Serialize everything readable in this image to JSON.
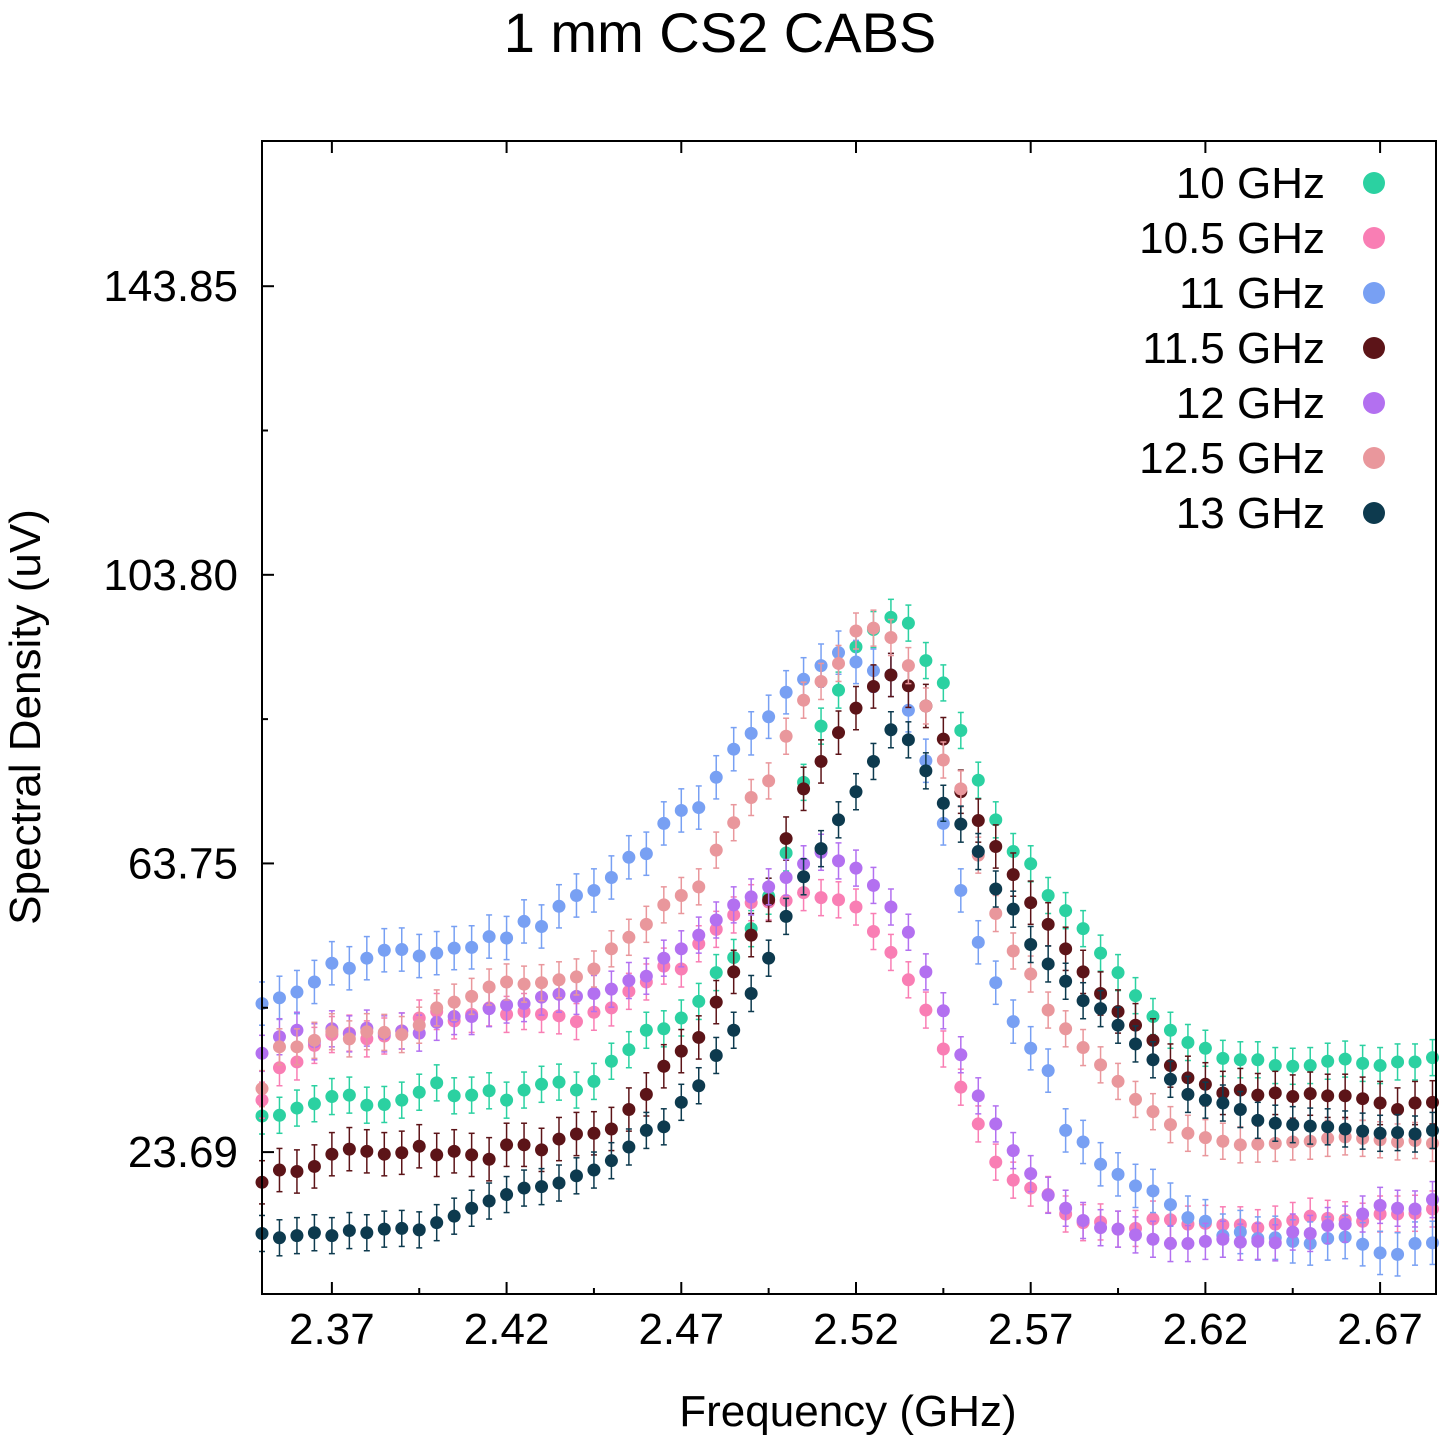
{
  "chart_data": {
    "type": "scatter",
    "title": "1 mm CS2 CABS",
    "xlabel": "Frequency (GHz)",
    "ylabel": "Spectral Density (uV)",
    "xlim": [
      2.35,
      2.686
    ],
    "ylim": [
      4.0,
      164.0
    ],
    "xticks": [
      {
        "value": 2.37,
        "label": "2.37"
      },
      {
        "value": 2.42,
        "label": "2.42"
      },
      {
        "value": 2.47,
        "label": "2.47"
      },
      {
        "value": 2.52,
        "label": "2.52"
      },
      {
        "value": 2.57,
        "label": "2.57"
      },
      {
        "value": 2.62,
        "label": "2.62"
      },
      {
        "value": 2.67,
        "label": "2.67"
      }
    ],
    "yticks": [
      {
        "value": 23.69,
        "label": "23.69"
      },
      {
        "value": 63.75,
        "label": "63.75"
      },
      {
        "value": 103.8,
        "label": "103.80"
      },
      {
        "value": 143.85,
        "label": "143.85"
      }
    ],
    "grid": false,
    "legend_position": "top-right",
    "x": [
      2.35,
      2.355,
      2.36,
      2.365,
      2.37,
      2.375,
      2.38,
      2.385,
      2.39,
      2.395,
      2.4,
      2.405,
      2.41,
      2.415,
      2.42,
      2.425,
      2.43,
      2.435,
      2.44,
      2.445,
      2.45,
      2.455,
      2.46,
      2.465,
      2.47,
      2.475,
      2.48,
      2.485,
      2.49,
      2.495,
      2.5,
      2.505,
      2.51,
      2.515,
      2.52,
      2.525,
      2.53,
      2.535,
      2.54,
      2.545,
      2.55,
      2.555,
      2.56,
      2.565,
      2.57,
      2.575,
      2.58,
      2.585,
      2.59,
      2.595,
      2.6,
      2.605,
      2.61,
      2.615,
      2.62,
      2.625,
      2.63,
      2.635,
      2.64,
      2.645,
      2.65,
      2.655,
      2.66,
      2.665,
      2.67,
      2.675,
      2.68,
      2.685
    ],
    "series": [
      {
        "name": "10 GHz",
        "color": "#2bd1a1",
        "error": 2.5,
        "values": [
          28.7,
          28.8,
          29.8,
          30.4,
          31.4,
          31.6,
          30.2,
          30.3,
          30.9,
          32.0,
          33.3,
          31.5,
          31.6,
          32.2,
          30.9,
          32.3,
          33.1,
          33.4,
          32.3,
          33.5,
          36.3,
          37.9,
          40.6,
          40.8,
          42.3,
          44.6,
          48.6,
          50.7,
          54.7,
          59.2,
          65.2,
          75.0,
          82.8,
          87.8,
          93.8,
          96.2,
          97.9,
          97.1,
          91.9,
          88.8,
          82.2,
          75.3,
          69.8,
          65.4,
          63.7,
          59.3,
          57.2,
          54.7,
          51.3,
          48.6,
          45.4,
          42.5,
          40.6,
          38.9,
          38.1,
          36.7,
          36.5,
          36.5,
          35.7,
          35.6,
          35.7,
          36.3,
          36.6,
          36.0,
          35.7,
          36.2,
          36.2,
          36.8
        ]
      },
      {
        "name": "10.5 GHz",
        "color": "#f97eb4",
        "error": 2.5,
        "values": [
          30.9,
          35.4,
          36.2,
          38.5,
          40.0,
          40.2,
          39.4,
          39.8,
          40.5,
          42.3,
          43.2,
          41.9,
          42.8,
          43.7,
          42.8,
          43.2,
          42.8,
          42.6,
          41.8,
          43.1,
          43.7,
          46.0,
          47.3,
          49.5,
          49.1,
          52.6,
          54.6,
          56.6,
          58.3,
          58.4,
          58.6,
          59.7,
          59.0,
          58.7,
          57.7,
          54.3,
          51.4,
          47.6,
          43.4,
          38.0,
          32.7,
          27.6,
          22.3,
          19.8,
          18.7,
          17.8,
          15.1,
          13.9,
          14.0,
          13.0,
          13.1,
          14.4,
          14.3,
          13.7,
          13.8,
          13.6,
          13.6,
          13.2,
          13.7,
          14.2,
          14.8,
          14.5,
          14.3,
          14.1,
          15.1,
          15.1,
          15.2,
          15.8
        ]
      },
      {
        "name": "11 GHz",
        "color": "#78a0f3",
        "error": 3.0,
        "values": [
          44.3,
          45.1,
          45.9,
          47.3,
          49.9,
          49.2,
          50.6,
          51.7,
          51.8,
          50.9,
          51.3,
          52.0,
          52.1,
          53.6,
          53.4,
          55.7,
          55.0,
          57.8,
          59.3,
          60.0,
          61.8,
          64.6,
          65.1,
          69.3,
          71.1,
          71.5,
          75.7,
          79.6,
          81.8,
          84.1,
          87.5,
          89.3,
          91.2,
          93.0,
          91.7,
          90.5,
          89.9,
          85.0,
          78.0,
          69.3,
          60.0,
          52.8,
          47.2,
          41.8,
          38.1,
          35.0,
          26.7,
          25.1,
          22.0,
          20.6,
          19.0,
          18.3,
          16.4,
          14.6,
          14.1,
          12.1,
          12.6,
          11.7,
          11.8,
          11.3,
          11.0,
          11.7,
          11.9,
          10.9,
          9.7,
          9.5,
          11.0,
          11.1
        ]
      },
      {
        "name": "11.5 GHz",
        "color": "#5c1418",
        "error": 3.0,
        "values": [
          19.5,
          21.2,
          21.0,
          21.7,
          23.4,
          24.1,
          23.8,
          23.4,
          23.6,
          24.5,
          23.3,
          23.8,
          23.3,
          22.7,
          24.7,
          24.7,
          24.0,
          25.5,
          26.2,
          26.3,
          26.9,
          29.6,
          31.7,
          35.6,
          37.7,
          39.6,
          44.5,
          48.7,
          53.8,
          58.7,
          67.2,
          74.1,
          77.9,
          81.9,
          85.3,
          88.3,
          89.9,
          88.4,
          85.6,
          81.0,
          73.7,
          69.7,
          66.1,
          62.2,
          58.3,
          55.3,
          51.9,
          48.7,
          45.7,
          43.2,
          41.3,
          39.2,
          35.7,
          34.0,
          33.1,
          31.9,
          32.3,
          31.6,
          31.9,
          31.4,
          31.8,
          31.5,
          31.5,
          31.1,
          30.5,
          29.6,
          30.5,
          30.6
        ]
      },
      {
        "name": "12 GHz",
        "color": "#b370f0",
        "error": 2.5,
        "values": [
          37.4,
          39.7,
          40.6,
          39.0,
          40.8,
          40.1,
          40.9,
          40.1,
          40.5,
          40.2,
          41.7,
          42.5,
          42.5,
          43.6,
          44.1,
          44.3,
          45.2,
          45.6,
          45.3,
          45.7,
          46.3,
          47.5,
          48.1,
          50.6,
          51.9,
          53.8,
          55.9,
          58.0,
          59.1,
          60.5,
          61.8,
          63.7,
          65.3,
          64.1,
          63.1,
          60.7,
          57.7,
          54.2,
          48.7,
          43.3,
          37.2,
          31.5,
          27.6,
          23.9,
          20.7,
          17.7,
          15.9,
          14.2,
          13.2,
          13.0,
          12.2,
          11.6,
          11.0,
          11.0,
          11.3,
          11.6,
          11.2,
          11.3,
          11.1,
          12.6,
          12.4,
          13.5,
          13.7,
          15.1,
          16.3,
          15.9,
          15.8,
          17.1
        ]
      },
      {
        "name": "12.5 GHz",
        "color": "#e9979c",
        "error": 2.5,
        "values": [
          32.5,
          38.3,
          38.3,
          39.2,
          40.4,
          39.4,
          40.4,
          40.3,
          40.0,
          41.3,
          43.7,
          44.5,
          45.3,
          46.6,
          47.3,
          47.0,
          47.2,
          47.6,
          48.0,
          49.1,
          51.9,
          53.5,
          55.3,
          58.0,
          59.3,
          60.5,
          65.6,
          69.4,
          72.9,
          75.2,
          81.4,
          86.4,
          89.0,
          91.5,
          96.0,
          96.4,
          95.1,
          91.2,
          85.6,
          78.1,
          74.1,
          64.9,
          56.8,
          51.6,
          48.4,
          43.4,
          40.8,
          38.2,
          35.8,
          33.5,
          31.0,
          29.3,
          27.5,
          26.3,
          25.7,
          25.2,
          24.7,
          24.8,
          24.9,
          25.1,
          25.2,
          25.6,
          25.8,
          25.6,
          25.4,
          25.1,
          25.3,
          24.9
        ]
      },
      {
        "name": "13 GHz",
        "color": "#0d3a4e",
        "error": 2.5,
        "values": [
          12.4,
          11.8,
          12.1,
          12.5,
          12.1,
          12.8,
          12.5,
          13.0,
          13.1,
          12.9,
          13.9,
          14.8,
          15.9,
          16.9,
          17.8,
          18.7,
          18.9,
          19.4,
          20.4,
          21.2,
          22.5,
          24.4,
          26.7,
          27.2,
          30.6,
          32.9,
          37.1,
          40.6,
          45.7,
          50.6,
          56.4,
          61.9,
          65.8,
          69.8,
          73.7,
          77.9,
          82.3,
          80.9,
          76.6,
          72.1,
          69.2,
          65.4,
          60.2,
          57.4,
          52.5,
          49.8,
          47.4,
          44.7,
          43.6,
          41.3,
          38.7,
          36.5,
          33.8,
          31.7,
          30.9,
          30.5,
          29.6,
          28.1,
          27.7,
          27.5,
          27.3,
          27.2,
          26.9,
          26.6,
          26.3,
          26.4,
          26.2,
          26.7
        ]
      }
    ]
  }
}
